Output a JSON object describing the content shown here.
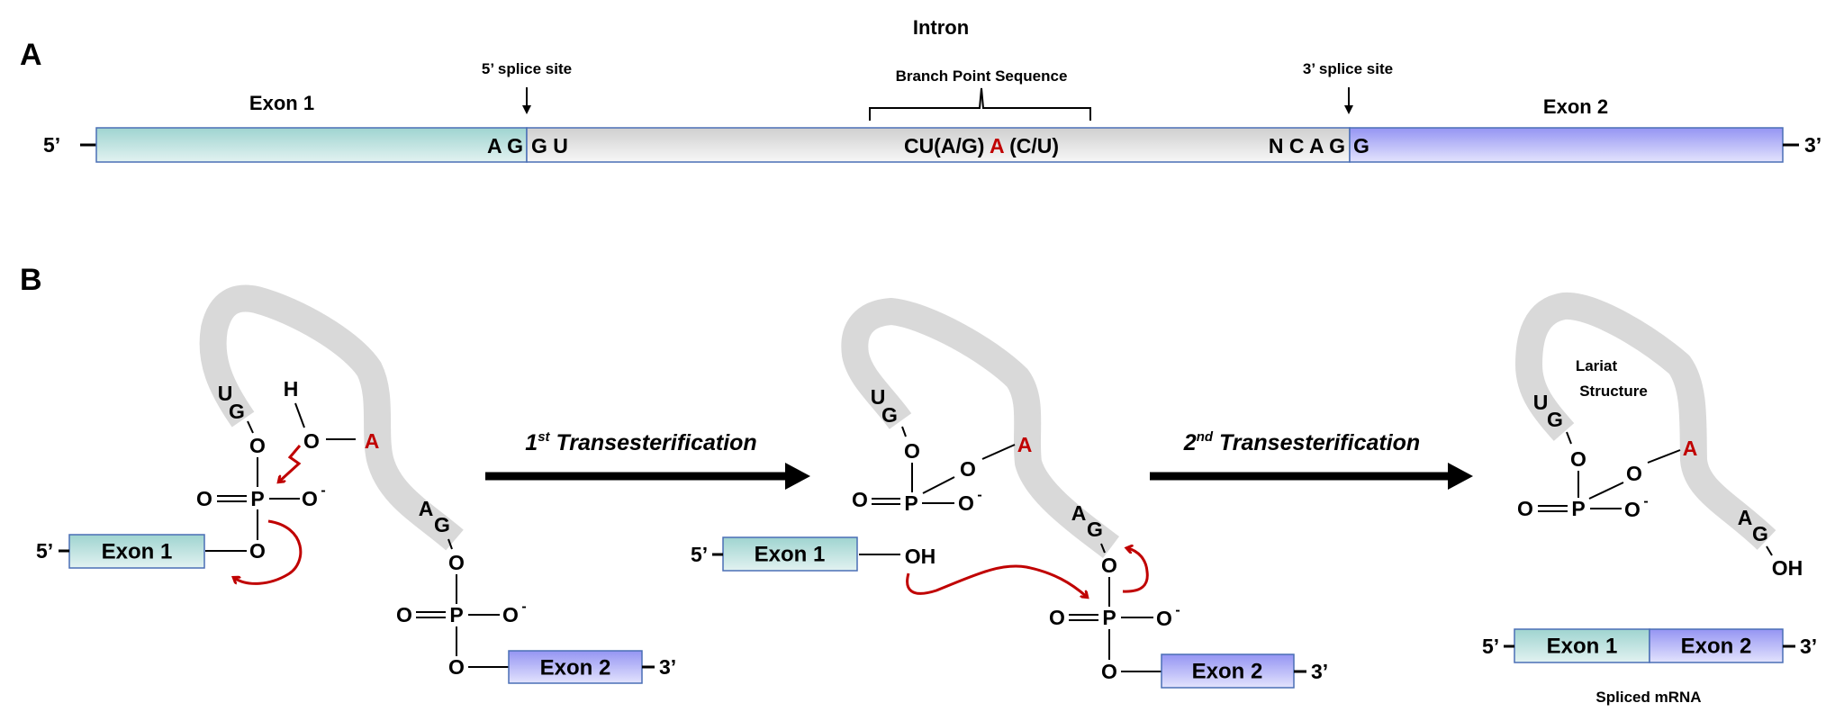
{
  "panel_a": {
    "label": "A",
    "intron_label": "Intron",
    "exon1_label": "Exon 1",
    "exon2_label": "Exon 2",
    "five_splice_site": "5’ splice site",
    "three_splice_site": "3’ splice site",
    "branch_point_label": "Branch Point Sequence",
    "five_end": "5’",
    "three_end": "3’",
    "seq_exon1_end": "A G",
    "seq_intron_start": "G U",
    "seq_branch_left": "CU(A/G)",
    "seq_branch_a": "A",
    "seq_branch_right": "(C/U)",
    "seq_intron_end": "N C A G",
    "seq_exon2_start": "G"
  },
  "panel_b": {
    "label": "B",
    "step1": {
      "prefix": "1",
      "sup": "st",
      "text": " Transesterification"
    },
    "step2": {
      "prefix": "2",
      "sup": "nd",
      "text": "  Transesterification"
    },
    "atoms": {
      "U": "U",
      "G": "G",
      "A": "A",
      "O": "O",
      "P": "P",
      "H": "H",
      "OH": "OH",
      "minus": "-"
    },
    "exon1": "Exon 1",
    "exon2": "Exon 2",
    "five_end": "5’",
    "three_end": "3’",
    "lariat_line1": "Lariat",
    "lariat_line2": "Structure",
    "spliced_label": "Spliced mRNA"
  },
  "colors": {
    "exon1": "#a6d9d5",
    "exon2": "#9d9df5",
    "intron": "#d9d9d9",
    "branch_point_a": "#c00000",
    "reaction_arrows": "#c00000",
    "box_border": "#4a6fb5"
  }
}
